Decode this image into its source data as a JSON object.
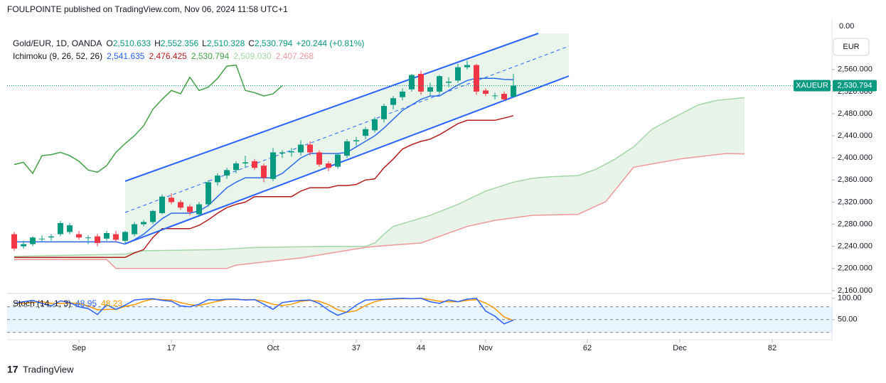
{
  "header": {
    "publisher": "FOULPOINTE published on TradingView.com, Nov 06, 2024 11:58 UTC+1",
    "brand": "TradingView"
  },
  "chart_data": {
    "type": "candlestick",
    "symbol": "Gold/EUR, 1D, OANDA",
    "ohlc_keys": [
      "O",
      "H",
      "L",
      "C"
    ],
    "last_labels": [
      "2,510.633",
      "2,552.356",
      "2,510.328",
      "2,530.794"
    ],
    "change": "+20.244 (+0.81%)",
    "currency": "EUR",
    "ticker": "XAUEUR",
    "last_price_label": "2,530.794",
    "top_label": "0.00",
    "up_color": "#089981",
    "down_color": "#f23645",
    "ohlc": [
      [
        2262,
        2266,
        2232,
        2236
      ],
      [
        2240,
        2250,
        2236,
        2244
      ],
      [
        2244,
        2258,
        2240,
        2256
      ],
      [
        2254,
        2260,
        2248,
        2254
      ],
      [
        2256,
        2262,
        2250,
        2258
      ],
      [
        2262,
        2286,
        2258,
        2282
      ],
      [
        2266,
        2282,
        2262,
        2278
      ],
      [
        2262,
        2268,
        2252,
        2256
      ],
      [
        2256,
        2260,
        2244,
        2256
      ],
      [
        2258,
        2262,
        2240,
        2246
      ],
      [
        2254,
        2268,
        2250,
        2264
      ],
      [
        2262,
        2268,
        2248,
        2252
      ],
      [
        2250,
        2268,
        2246,
        2266
      ],
      [
        2262,
        2284,
        2258,
        2280
      ],
      [
        2280,
        2288,
        2276,
        2284
      ],
      [
        2284,
        2306,
        2280,
        2304
      ],
      [
        2300,
        2334,
        2298,
        2330
      ],
      [
        2328,
        2336,
        2316,
        2320
      ],
      [
        2320,
        2324,
        2306,
        2310
      ],
      [
        2312,
        2316,
        2296,
        2302
      ],
      [
        2298,
        2320,
        2294,
        2316
      ],
      [
        2316,
        2360,
        2312,
        2356
      ],
      [
        2356,
        2372,
        2350,
        2368
      ],
      [
        2368,
        2382,
        2362,
        2378
      ],
      [
        2378,
        2394,
        2372,
        2390
      ],
      [
        2390,
        2404,
        2382,
        2392
      ],
      [
        2394,
        2398,
        2378,
        2382
      ],
      [
        2386,
        2390,
        2356,
        2364
      ],
      [
        2362,
        2418,
        2358,
        2410
      ],
      [
        2408,
        2414,
        2400,
        2410
      ],
      [
        2410,
        2418,
        2402,
        2412
      ],
      [
        2410,
        2432,
        2404,
        2424
      ],
      [
        2424,
        2430,
        2404,
        2410
      ],
      [
        2410,
        2414,
        2384,
        2388
      ],
      [
        2390,
        2394,
        2376,
        2382
      ],
      [
        2384,
        2408,
        2380,
        2406
      ],
      [
        2404,
        2434,
        2400,
        2430
      ],
      [
        2430,
        2438,
        2422,
        2432
      ],
      [
        2440,
        2456,
        2434,
        2452
      ],
      [
        2450,
        2474,
        2446,
        2470
      ],
      [
        2470,
        2498,
        2464,
        2494
      ],
      [
        2496,
        2512,
        2488,
        2508
      ],
      [
        2510,
        2526,
        2504,
        2520
      ],
      [
        2524,
        2552,
        2520,
        2550
      ],
      [
        2552,
        2558,
        2514,
        2520
      ],
      [
        2520,
        2536,
        2512,
        2528
      ],
      [
        2520,
        2550,
        2516,
        2548
      ],
      [
        2536,
        2546,
        2528,
        2538
      ],
      [
        2540,
        2570,
        2536,
        2564
      ],
      [
        2564,
        2576,
        2560,
        2568
      ],
      [
        2568,
        2570,
        2514,
        2520
      ],
      [
        2522,
        2526,
        2512,
        2516
      ],
      [
        2512,
        2518,
        2506,
        2513
      ],
      [
        2516,
        2520,
        2504,
        2506
      ],
      [
        2510.633,
        2552.356,
        2510.328,
        2530.794
      ]
    ],
    "xlim": [
      -0.77,
      88.46
    ],
    "xticks": [
      {
        "value": 7,
        "label": "Sep"
      },
      17,
      {
        "value": 28,
        "label": "Oct"
      },
      37,
      44,
      {
        "value": 51,
        "label": "Nov"
      },
      62,
      {
        "value": 72,
        "label": "Dec"
      },
      82
    ],
    "ylim": [
      2156,
      2651
    ],
    "yticks": [
      {
        "value": 2160,
        "label": "2,160.000"
      },
      {
        "value": 2200,
        "label": "2,200.000"
      },
      {
        "value": 2240,
        "label": "2,240.000"
      },
      {
        "value": 2280,
        "label": "2,280.000"
      },
      {
        "value": 2320,
        "label": "2,320.000"
      },
      {
        "value": 2360,
        "label": "2,360.000"
      },
      {
        "value": 2400,
        "label": "2,400.000"
      },
      {
        "value": 2440,
        "label": "2,440.000"
      },
      {
        "value": 2480,
        "label": "2,480.000"
      },
      {
        "value": 2520,
        "label": "2,520.000"
      },
      {
        "value": 2560,
        "label": "2,560.000"
      }
    ],
    "indicator": {
      "name": "Ichimoku (9, 26, 52, 26)",
      "series": [
        {
          "color": "#2962ff",
          "legend_label": "2,541.635",
          "values": [
            2248,
            2248,
            2248,
            2248,
            2248,
            2248,
            2248,
            2248,
            2248,
            2248,
            2248,
            2248,
            2244,
            2252,
            2262,
            2276,
            2290,
            2300,
            2300,
            2300,
            2304,
            2314,
            2330,
            2346,
            2356,
            2364,
            2364,
            2364,
            2364,
            2372,
            2386,
            2400,
            2408,
            2408,
            2408,
            2408,
            2410,
            2420,
            2430,
            2440,
            2454,
            2470,
            2486,
            2496,
            2506,
            2512,
            2512,
            2522,
            2532,
            2540,
            2544,
            2544,
            2544,
            2542,
            2541.635
          ]
        },
        {
          "color": "#b71c1c",
          "legend_label": "2,476.425",
          "values": [
            2220,
            2220,
            2220,
            2220,
            2220,
            2220,
            2220,
            2220,
            2220,
            2220,
            2220,
            2220,
            2220,
            2228,
            2234,
            2256,
            2272,
            2272,
            2272,
            2272,
            2278,
            2288,
            2300,
            2310,
            2316,
            2320,
            2330,
            2330,
            2330,
            2330,
            2330,
            2340,
            2346,
            2346,
            2346,
            2350,
            2350,
            2352,
            2360,
            2362,
            2382,
            2398,
            2416,
            2424,
            2430,
            2434,
            2442,
            2452,
            2462,
            2468,
            2468,
            2468,
            2468,
            2472,
            2476.425
          ]
        },
        {
          "color": "#43a047",
          "legend_label": "2,530.794",
          "values": [
            2388,
            2392,
            2372,
            2404,
            2406,
            2410,
            2404,
            2394,
            2378,
            2374,
            2386,
            2410,
            2426,
            2440,
            2458,
            2488,
            2506,
            2522,
            2516,
            2546,
            2522,
            2528,
            2544,
            2566,
            2568,
            2522,
            2518,
            2512,
            2516,
            2530.794
          ]
        },
        {
          "color": "#a5d6a7",
          "legend_label": "2,509.030",
          "x": [
            0,
            12,
            14,
            22,
            26,
            34,
            38,
            39,
            40,
            41,
            45,
            48,
            51,
            54,
            56,
            58,
            61,
            63,
            65,
            67,
            69,
            71,
            74,
            76,
            79
          ],
          "values": [
            2222,
            2226,
            2232,
            2234,
            2238,
            2240,
            2240,
            2246,
            2262,
            2276,
            2296,
            2316,
            2340,
            2356,
            2363,
            2366,
            2368,
            2380,
            2398,
            2420,
            2452,
            2470,
            2496,
            2504,
            2509.03
          ]
        },
        {
          "color": "#ef9a9a",
          "legend_label": "2,407.268",
          "x": [
            0,
            10,
            11,
            23,
            24,
            31,
            38,
            39,
            44,
            49,
            52,
            56,
            61,
            64,
            67,
            72,
            77,
            79
          ],
          "values": [
            2216,
            2216,
            2200,
            2200,
            2206,
            2219,
            2238,
            2240,
            2246,
            2276,
            2287,
            2296,
            2298,
            2321,
            2383,
            2398,
            2408,
            2407.268
          ]
        }
      ]
    },
    "stoch": {
      "name": "Stoch (14, 1, 3)",
      "ylim": [
        8,
        108
      ],
      "yticks": [
        {
          "value": 50,
          "label": "50.00"
        },
        {
          "value": 100,
          "label": "100.00"
        }
      ],
      "bands": [
        20,
        50,
        80
      ],
      "series": [
        {
          "color": "#2962ff",
          "legend_label": "48.95",
          "values": [
            88,
            92,
            95,
            88,
            82,
            94,
            90,
            80,
            76,
            62,
            85,
            74,
            84,
            96,
            98,
            99,
            95,
            93,
            82,
            80,
            86,
            97,
            96,
            98,
            98,
            96,
            97,
            86,
            74,
            90,
            93,
            95,
            96,
            88,
            72,
            60,
            68,
            84,
            96,
            97,
            98,
            99,
            100,
            99,
            100,
            92,
            88,
            96,
            92,
            98,
            100,
            70,
            58,
            40,
            48.95
          ]
        },
        {
          "color": "#ff9800",
          "legend_label": "48.23",
          "values": [
            88,
            88,
            90,
            92,
            88,
            88,
            89,
            88,
            82,
            73,
            74,
            74,
            81,
            85,
            93,
            98,
            97,
            96,
            90,
            85,
            83,
            88,
            93,
            97,
            97,
            97,
            97,
            93,
            86,
            83,
            86,
            93,
            95,
            93,
            85,
            73,
            67,
            71,
            83,
            92,
            97,
            98,
            99,
            99,
            100,
            97,
            93,
            92,
            92,
            95,
            97,
            89,
            76,
            56,
            48.23
          ]
        }
      ]
    }
  }
}
